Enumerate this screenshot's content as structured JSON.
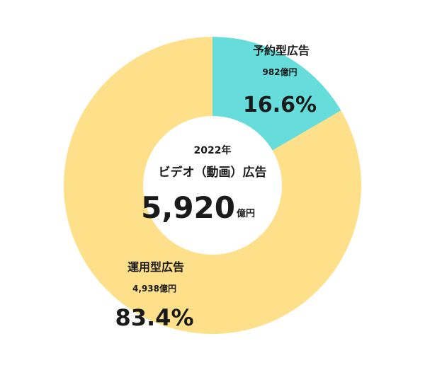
{
  "chart_data": {
    "type": "pie",
    "variant": "donut",
    "center": {
      "year": "2022年",
      "title": "ビデオ（動画）広告",
      "total_value": "5,920",
      "total_unit": "億円"
    },
    "slices": [
      {
        "name": "予約型広告",
        "amount": "982億円",
        "percent_label": "16.6%",
        "value": 16.6,
        "color": "#66dcdb"
      },
      {
        "name": "運用型広告",
        "amount": "4,938億円",
        "percent_label": "83.4%",
        "value": 83.4,
        "color": "#fde089"
      }
    ]
  }
}
